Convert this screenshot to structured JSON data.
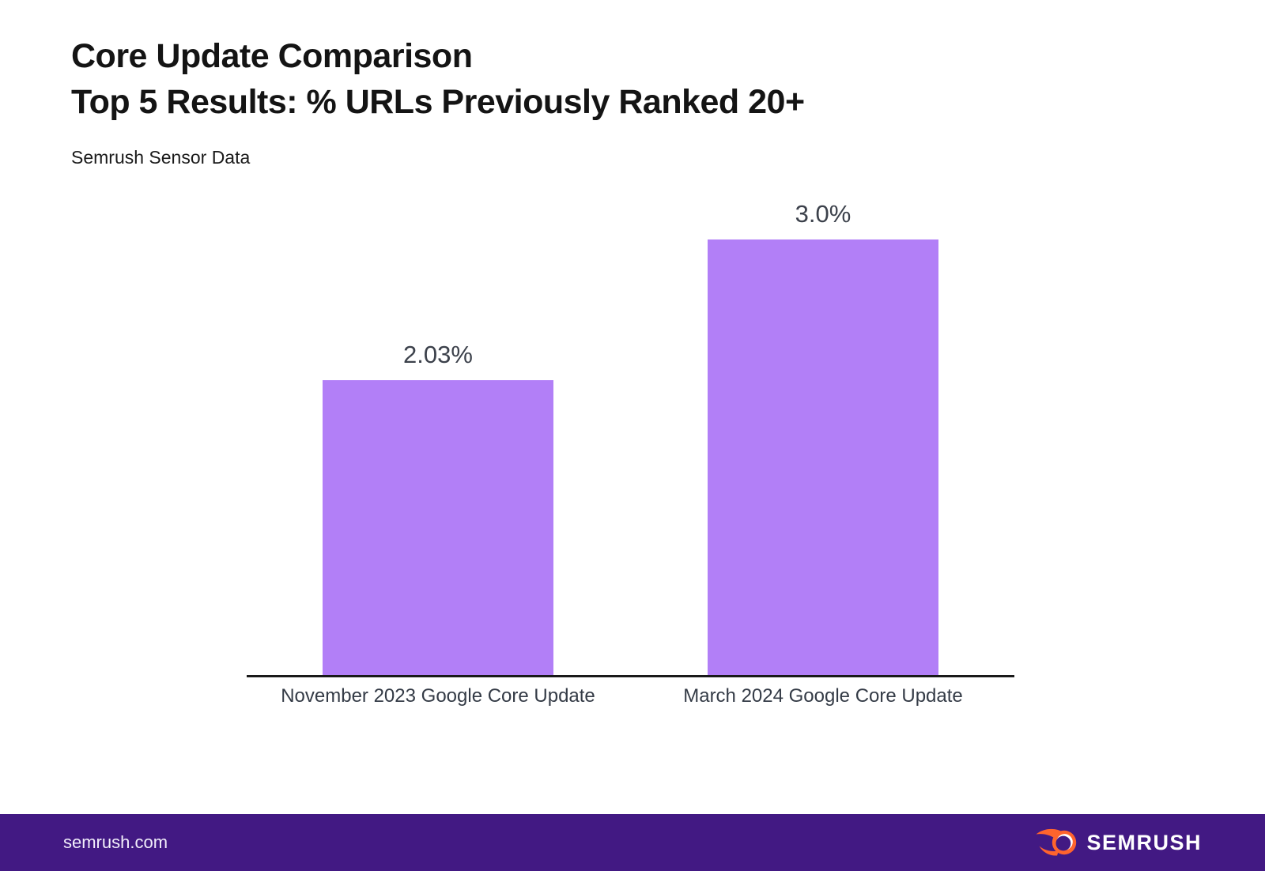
{
  "header": {
    "title_line1": "Core Update Comparison",
    "title_line2": "Top 5 Results: % URLs Previously Ranked 20+",
    "subtitle": "Semrush Sensor Data"
  },
  "chart_data": {
    "type": "bar",
    "title": "Core Update Comparison",
    "subtitle": "Top 5 Results: % URLs Previously Ranked 20+",
    "source_note": "Semrush Sensor Data",
    "categories": [
      "November 2023 Google Core Update",
      "March 2024 Google Core Update"
    ],
    "values": [
      2.03,
      3.0
    ],
    "value_labels": [
      "2.03%",
      "3.0%"
    ],
    "ylim": [
      0,
      3.0
    ],
    "grid": false,
    "legend": "none",
    "bar_color": "#b27ff7",
    "axis_color": "#191919",
    "label_color": "#3c414b"
  },
  "footer": {
    "site": "semrush.com",
    "brand": "SEMRUSH",
    "background": "#421983",
    "flame_color": "#ff642d"
  }
}
